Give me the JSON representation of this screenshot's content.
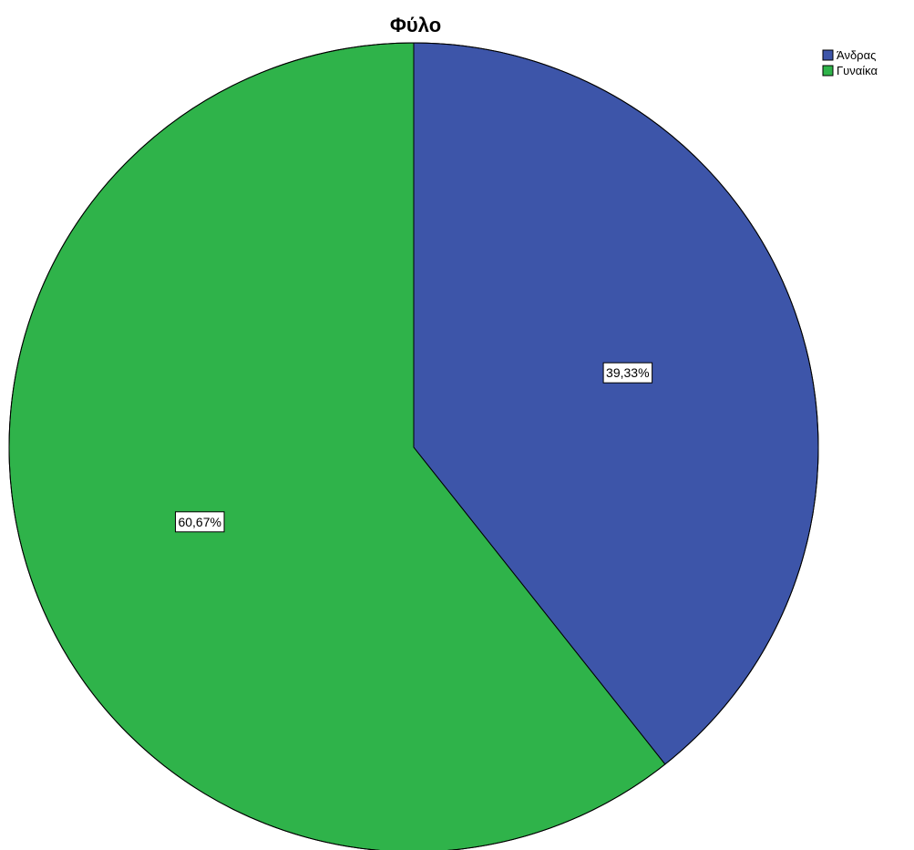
{
  "chart_data": {
    "type": "pie",
    "title": "Φύλο",
    "categories": [
      "Άνδρας",
      "Γυναίκα"
    ],
    "values": [
      39.33,
      60.67
    ],
    "data_labels": [
      "39,33%",
      "60,67%"
    ],
    "colors": [
      "#3d55a9",
      "#2fb34a"
    ],
    "start_angle_deg": 0,
    "direction": "clockwise",
    "legend": {
      "position": "top-right",
      "entries": [
        "Άνδρας",
        "Γυναίκα"
      ]
    }
  }
}
